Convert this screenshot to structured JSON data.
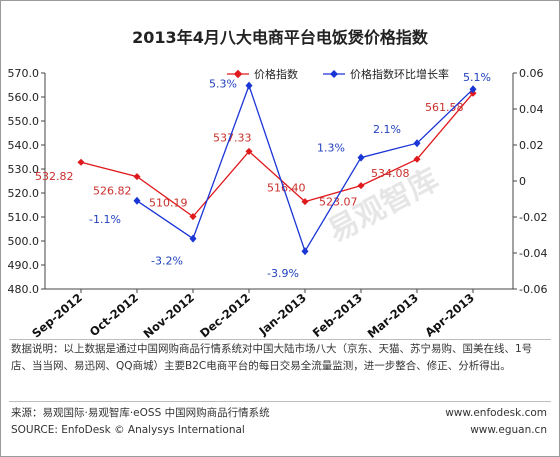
{
  "chart_data": {
    "type": "line",
    "title": "2013年4月八大电商平台电饭煲价格指数",
    "categories": [
      "Sep-2012",
      "Oct-2012",
      "Nov-2012",
      "Dec-2012",
      "Jan-2013",
      "Feb-2013",
      "Mar-2013",
      "Apr-2013"
    ],
    "series": [
      {
        "name": "价格指数",
        "axis": "left",
        "color": "#e0191c",
        "values": [
          532.82,
          526.82,
          510.19,
          537.33,
          516.4,
          523.07,
          534.08,
          561.58
        ],
        "labels": [
          "532.82",
          "526.82",
          "510.19",
          "537.33",
          "516.40",
          "523.07",
          "534.08",
          "561.58"
        ]
      },
      {
        "name": "价格指数环比增长率",
        "axis": "right",
        "color": "#1a35d6",
        "values": [
          null,
          -0.011,
          -0.032,
          0.053,
          -0.039,
          0.013,
          0.021,
          0.051
        ],
        "labels": [
          "",
          "-1.1%",
          "-3.2%",
          "5.3%",
          "-3.9%",
          "1.3%",
          "2.1%",
          "5.1%"
        ]
      }
    ],
    "yleft_lim": [
      480,
      570
    ],
    "yleft_ticks": [
      "480.0",
      "490.0",
      "500.0",
      "510.0",
      "520.0",
      "530.0",
      "540.0",
      "550.0",
      "560.0",
      "570.0"
    ],
    "yright_lim": [
      -0.06,
      0.06
    ],
    "yright_ticks": [
      "-0.06",
      "-0.04",
      "-0.02",
      "0",
      "0.02",
      "0.04",
      "0.06"
    ],
    "legend_position": "top",
    "grid": false
  },
  "watermark": "易观智库",
  "note": "数据说明：以上数据是通过中国网购商品行情系统对中国大陆市场八大（京东、天猫、苏宁易购、国美在线、1号店、当当网、易迅网、QQ商城）主要B2C电商平台的每日交易全流量监测，进一步整合、修正、分析得出。",
  "footer": {
    "source_cn": "来源：易观国际·易观智库·eOSS 中国网购商品行情系统",
    "source_en": "SOURCE: EnfoDesk © Analysys International",
    "url1": "www.enfodesk.com",
    "url2": "www.eguan.cn"
  }
}
